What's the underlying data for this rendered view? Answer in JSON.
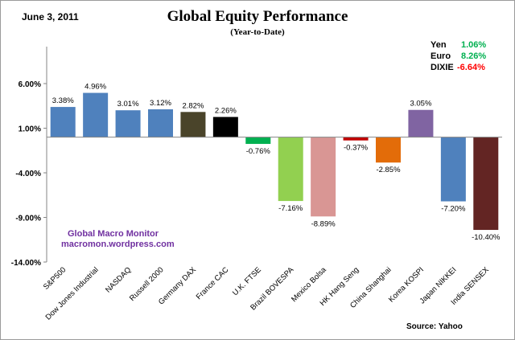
{
  "header": {
    "date": "June 3,  2011",
    "title": "Global Equity Performance",
    "subtitle": "(Year-to-Date)"
  },
  "currencies": [
    {
      "name": "Yen",
      "value": "1.06%",
      "color": "#00b050"
    },
    {
      "name": "Euro",
      "value": "8.26%",
      "color": "#00b050"
    },
    {
      "name": "DIXIE",
      "value": "-6.64%",
      "color": "#ff0000"
    }
  ],
  "watermark": {
    "line1": "Global  Macro  Monitor",
    "line2": "macromon.wordpress.com"
  },
  "source": "Source:   Yahoo",
  "chart_data": {
    "type": "bar",
    "title": "Global Equity Performance",
    "subtitle": "(Year-to-Date)",
    "xlabel": "",
    "ylabel": "",
    "ylim": [
      -14,
      6
    ],
    "yticks": [
      6,
      1,
      -4,
      -9,
      -14
    ],
    "ytick_labels": [
      "6.00%",
      "1.00%",
      "-4.00%",
      "-9.00%",
      "-14.00%"
    ],
    "grid": false,
    "categories": [
      "S&P500",
      "Dow Jones Industrial",
      "NASDAQ",
      "Russell 2000",
      "Germany DAX",
      "France CAC",
      "U.K. FTSE",
      "Brazil BOVESPA",
      "Mexico Bolsa",
      "HK Hang Seng",
      "China Shanghai",
      "Korea KOSPI",
      "Japan NIKKEI",
      "India SENSEX"
    ],
    "values": [
      3.38,
      4.96,
      3.01,
      3.12,
      2.82,
      2.26,
      -0.76,
      -7.16,
      -8.89,
      -0.37,
      -2.85,
      3.05,
      -7.2,
      -10.4
    ],
    "data_labels": [
      "3.38%",
      "4.96%",
      "3.01%",
      "3.12%",
      "2.82%",
      "2.26%",
      "-0.76%",
      "-7.16%",
      "-8.89%",
      "-0.37%",
      "-2.85%",
      "3.05%",
      "-7.20%",
      "-10.40%"
    ],
    "colors": [
      "#4f81bd",
      "#4f81bd",
      "#4f81bd",
      "#4f81bd",
      "#4a442a",
      "#000000",
      "#00b050",
      "#92d050",
      "#d99694",
      "#c00000",
      "#e36c09",
      "#8064a2",
      "#4f81bd",
      "#632523"
    ]
  }
}
